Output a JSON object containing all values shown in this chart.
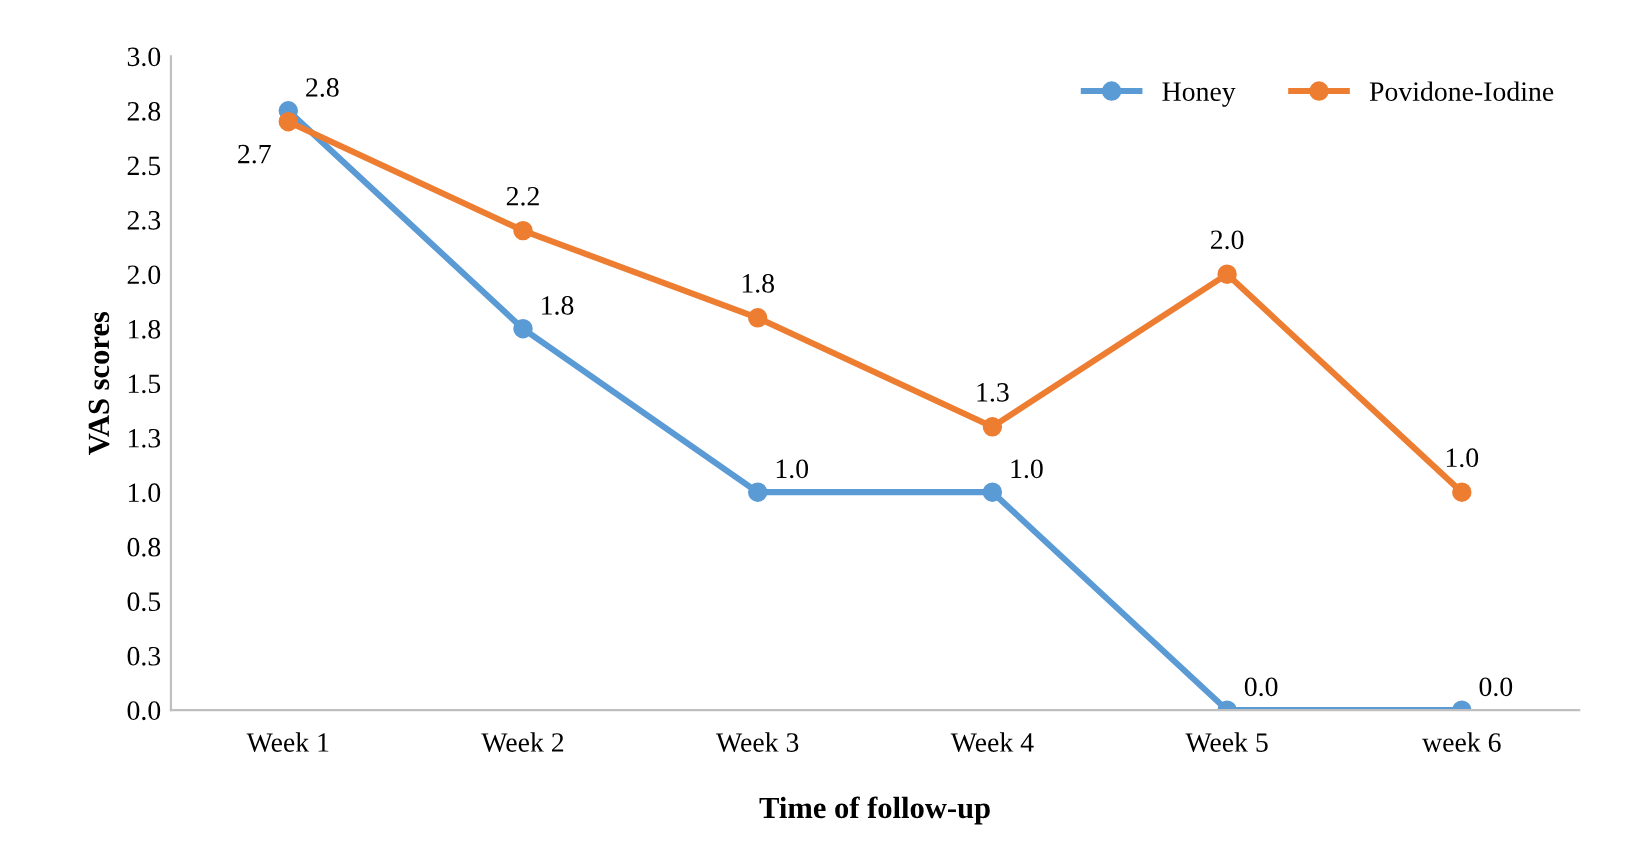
{
  "chart_data": {
    "type": "line",
    "xlabel": "Time of follow-up",
    "ylabel": "VAS scores",
    "categories": [
      "Week 1",
      "Week 2",
      "Week 3",
      "Week 4",
      "Week 5",
      "week 6"
    ],
    "series": [
      {
        "name": "Honey",
        "color": "#5b9bd5",
        "values": [
          2.75,
          1.75,
          1.0,
          1.0,
          0.0,
          0.0
        ],
        "value_labels": [
          "2.8",
          "1.8",
          "1.0",
          "1.0",
          "0.0",
          "0.0"
        ]
      },
      {
        "name": "Povidone-Iodine",
        "color": "#ed7d31",
        "values": [
          2.7,
          2.2,
          1.8,
          1.3,
          2.0,
          1.0
        ],
        "value_labels": [
          "2.7",
          "2.2",
          "1.8",
          "1.3",
          "2.0",
          "1.0"
        ]
      }
    ],
    "ylim": [
      0,
      3
    ],
    "yticks": [
      {
        "value": 0,
        "label": "0.0"
      },
      {
        "value": 0.25,
        "label": "0.3"
      },
      {
        "value": 0.5,
        "label": "0.5"
      },
      {
        "value": 0.75,
        "label": "0.8"
      },
      {
        "value": 1,
        "label": "1.0"
      },
      {
        "value": 1.25,
        "label": "1.3"
      },
      {
        "value": 1.5,
        "label": "1.5"
      },
      {
        "value": 1.75,
        "label": "1.8"
      },
      {
        "value": 2,
        "label": "2.0"
      },
      {
        "value": 2.25,
        "label": "2.3"
      },
      {
        "value": 2.5,
        "label": "2.5"
      },
      {
        "value": 2.75,
        "label": "2.8"
      },
      {
        "value": 3,
        "label": "3.0"
      }
    ],
    "legend": "top right",
    "grid": false,
    "marker": "circle",
    "line_style": "solid"
  }
}
